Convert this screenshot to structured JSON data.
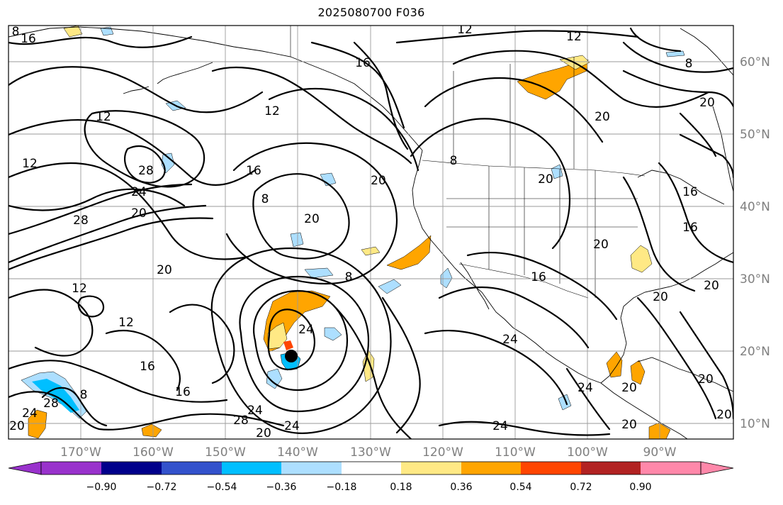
{
  "title": "2025080700 F036",
  "map": {
    "lon_labels": [
      "170°W",
      "160°W",
      "150°W",
      "140°W",
      "130°W",
      "120°W",
      "110°W",
      "100°W",
      "90°W"
    ],
    "lat_labels": [
      "60°N",
      "50°N",
      "40°N",
      "30°N",
      "20°N",
      "10°N"
    ],
    "contour_labels": [
      "12",
      "12",
      "8",
      "16",
      "12",
      "12",
      "8",
      "12",
      "16",
      "28",
      "24",
      "20",
      "28",
      "20",
      "16",
      "8",
      "20",
      "20",
      "20",
      "20",
      "16",
      "8",
      "8",
      "16",
      "20",
      "12",
      "20",
      "12",
      "24",
      "16",
      "16",
      "24",
      "28",
      "24",
      "20",
      "24",
      "28",
      "24",
      "8",
      "20",
      "24",
      "20",
      "20",
      "20",
      "16",
      "20",
      "24",
      "20",
      "20"
    ],
    "storm_center_marker": "filled-circle",
    "colors": {
      "shade_positive_light": "#ffe985",
      "shade_positive_mid": "#ffa500",
      "shade_positive_high": "#ff4500",
      "shade_negative_light": "#addfff",
      "shade_negative_mid": "#00bfff"
    }
  },
  "colorbar": {
    "tick_labels": [
      "−0.90",
      "−0.72",
      "−0.54",
      "−0.36",
      "−0.18",
      "0.18",
      "0.36",
      "0.54",
      "0.72",
      "0.90"
    ],
    "colors": [
      "#9932cc",
      "#00008b",
      "#3352cc",
      "#00bfff",
      "#addfff",
      "#ffffff",
      "#ffe985",
      "#ffa500",
      "#ff4500",
      "#b22222",
      "#ff88aa"
    ]
  }
}
